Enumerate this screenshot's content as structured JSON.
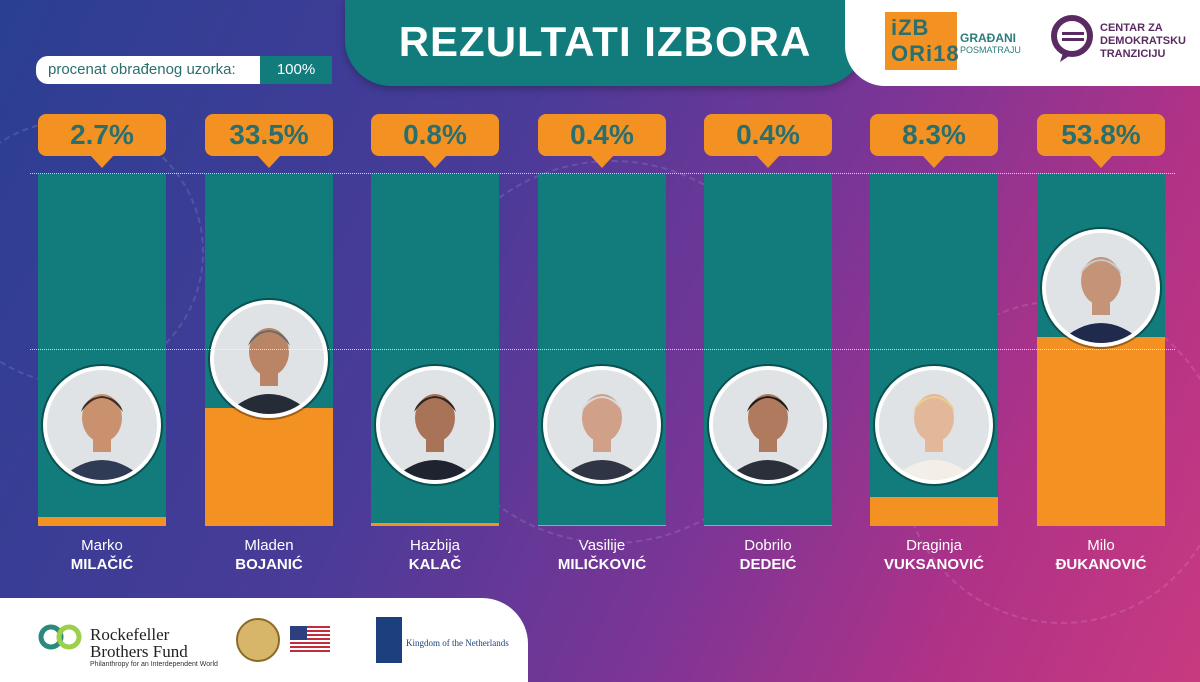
{
  "header": {
    "title": "REZULTATI IZBORA",
    "sample_label": "procenat obrađenog uzorka:",
    "sample_value": "100%"
  },
  "logos": {
    "izbori_line1": "iZB",
    "izbori_line2": "ORi18",
    "izbori_sub1": "GRAĐANI",
    "izbori_sub2": "POSMATRAJU",
    "cdt_line1": "CENTAR ZA",
    "cdt_line2": "DEMOKRATSKU",
    "cdt_line3": "TRANZICIJU"
  },
  "sponsors": {
    "rbf_line1": "Rockefeller",
    "rbf_line2": "Brothers Fund",
    "rbf_tagline": "Philanthropy for an Interdependent World",
    "nl_text": "Kingdom of the Netherlands"
  },
  "colors": {
    "teal": "#127b7c",
    "orange": "#f39222",
    "pct_text": "#2a6f6e"
  },
  "chart_data": {
    "type": "bar",
    "title": "REZULTATI IZBORA",
    "ylim": [
      0,
      100
    ],
    "categories": [
      "Marko MILAČIĆ",
      "Mladen BOJANIĆ",
      "Hazbija KALAČ",
      "Vasilije MILIČKOVIĆ",
      "Dobrilo DEDEIĆ",
      "Draginja VUKSANOVIĆ",
      "Milo ĐUKANOVIĆ"
    ],
    "values": [
      2.7,
      33.5,
      0.8,
      0.4,
      0.4,
      8.3,
      53.8
    ],
    "candidates": [
      {
        "first": "Marko",
        "last": "MILAČIĆ",
        "pct_label": "2.7%",
        "value": 2.7
      },
      {
        "first": "Mladen",
        "last": "BOJANIĆ",
        "pct_label": "33.5%",
        "value": 33.5
      },
      {
        "first": "Hazbija",
        "last": "KALAČ",
        "pct_label": "0.8%",
        "value": 0.8
      },
      {
        "first": "Vasilije",
        "last": "MILIČKOVIĆ",
        "pct_label": "0.4%",
        "value": 0.4
      },
      {
        "first": "Dobrilo",
        "last": "DEDEIĆ",
        "pct_label": "0.4%",
        "value": 0.4
      },
      {
        "first": "Draginja",
        "last": "VUKSANOVIĆ",
        "pct_label": "8.3%",
        "value": 8.3
      },
      {
        "first": "Milo",
        "last": "ĐUKANOVIĆ",
        "pct_label": "53.8%",
        "value": 53.8
      }
    ]
  }
}
